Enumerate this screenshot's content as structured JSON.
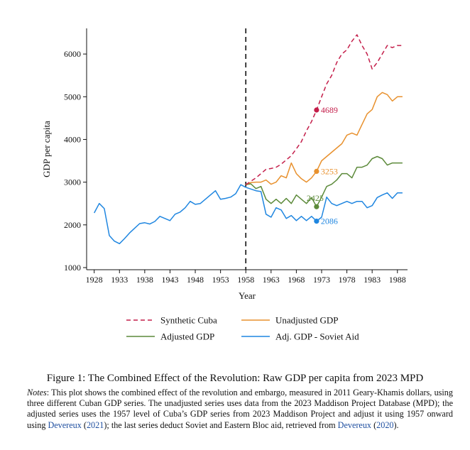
{
  "chart_data": {
    "type": "line",
    "xlabel": "Year",
    "ylabel": "GDP per capita",
    "xlim": [
      1926.5,
      1990
    ],
    "ylim": [
      950,
      6600
    ],
    "xticks": [
      1928,
      1933,
      1938,
      1943,
      1948,
      1953,
      1958,
      1963,
      1968,
      1973,
      1978,
      1983,
      1988
    ],
    "yticks": [
      1000,
      2000,
      3000,
      4000,
      5000,
      6000
    ],
    "grid": false,
    "vline": {
      "x": 1958,
      "style": "dashed"
    },
    "legend_position": "bottom",
    "series": [
      {
        "name": "Synthetic Cuba",
        "color": "#c41e4a",
        "style": "dashed",
        "x": [
          1958,
          1959,
          1960,
          1961,
          1962,
          1963,
          1964,
          1965,
          1966,
          1967,
          1968,
          1969,
          1970,
          1971,
          1972,
          1973,
          1974,
          1975,
          1976,
          1977,
          1978,
          1979,
          1980,
          1981,
          1982,
          1983,
          1984,
          1985,
          1986,
          1987,
          1988,
          1989
        ],
        "values": [
          2940,
          3020,
          3100,
          3200,
          3300,
          3320,
          3350,
          3420,
          3520,
          3620,
          3780,
          3950,
          4200,
          4420,
          4689,
          5000,
          5300,
          5500,
          5800,
          6000,
          6100,
          6300,
          6450,
          6200,
          6000,
          5650,
          5800,
          6000,
          6200,
          6150,
          6200,
          6200
        ]
      },
      {
        "name": "Unadjusted GDP",
        "color": "#e8912e",
        "style": "solid",
        "x": [
          1958,
          1959,
          1960,
          1961,
          1962,
          1963,
          1964,
          1965,
          1966,
          1967,
          1968,
          1969,
          1970,
          1971,
          1972,
          1973,
          1974,
          1975,
          1976,
          1977,
          1978,
          1979,
          1980,
          1981,
          1982,
          1983,
          1984,
          1985,
          1986,
          1987,
          1988,
          1989
        ],
        "values": [
          2940,
          2990,
          3000,
          3000,
          3050,
          2950,
          3000,
          3150,
          3100,
          3450,
          3200,
          3080,
          3000,
          3100,
          3253,
          3500,
          3600,
          3700,
          3800,
          3900,
          4100,
          4150,
          4100,
          4350,
          4600,
          4700,
          5000,
          5100,
          5050,
          4900,
          5000,
          5000
        ]
      },
      {
        "name": "Adjusted GDP",
        "color": "#5c8a3a",
        "style": "solid",
        "x": [
          1958,
          1959,
          1960,
          1961,
          1962,
          1963,
          1964,
          1965,
          1966,
          1967,
          1968,
          1969,
          1970,
          1971,
          1972,
          1973,
          1974,
          1975,
          1976,
          1977,
          1978,
          1979,
          1980,
          1981,
          1982,
          1983,
          1984,
          1985,
          1986,
          1987,
          1988,
          1989
        ],
        "values": [
          2940,
          2960,
          2850,
          2900,
          2600,
          2500,
          2600,
          2500,
          2620,
          2500,
          2700,
          2600,
          2500,
          2640,
          2425,
          2650,
          2900,
          2950,
          3050,
          3200,
          3200,
          3100,
          3350,
          3350,
          3400,
          3550,
          3600,
          3550,
          3400,
          3450,
          3450,
          3450
        ]
      },
      {
        "name": "Adj. GDP - Soviet Aid",
        "color": "#1f86e0",
        "style": "solid",
        "x": [
          1928,
          1929,
          1930,
          1931,
          1932,
          1933,
          1934,
          1935,
          1936,
          1937,
          1938,
          1939,
          1940,
          1941,
          1942,
          1943,
          1944,
          1945,
          1946,
          1947,
          1948,
          1949,
          1950,
          1951,
          1952,
          1953,
          1954,
          1955,
          1956,
          1957,
          1958,
          1959,
          1960,
          1961,
          1962,
          1963,
          1964,
          1965,
          1966,
          1967,
          1968,
          1969,
          1970,
          1971,
          1972,
          1973,
          1974,
          1975,
          1976,
          1977,
          1978,
          1979,
          1980,
          1981,
          1982,
          1983,
          1984,
          1985,
          1986,
          1987,
          1988,
          1989
        ],
        "values": [
          2280,
          2500,
          2380,
          1750,
          1620,
          1560,
          1680,
          1810,
          1920,
          2030,
          2050,
          2020,
          2080,
          2200,
          2150,
          2100,
          2250,
          2300,
          2400,
          2550,
          2480,
          2500,
          2600,
          2700,
          2800,
          2600,
          2620,
          2650,
          2730,
          2940,
          2880,
          2840,
          2800,
          2780,
          2250,
          2180,
          2400,
          2350,
          2150,
          2220,
          2100,
          2200,
          2100,
          2200,
          2086,
          2180,
          2650,
          2500,
          2450,
          2500,
          2550,
          2500,
          2550,
          2550,
          2400,
          2450,
          2640,
          2700,
          2750,
          2620,
          2750,
          2750
        ]
      }
    ],
    "annotations": [
      {
        "series": "Synthetic Cuba",
        "x": 1972,
        "y": 4689,
        "text": "4689"
      },
      {
        "series": "Unadjusted GDP",
        "x": 1972,
        "y": 3253,
        "text": "3253"
      },
      {
        "series": "Adjusted GDP",
        "x": 1972,
        "y": 2425,
        "text": "2425"
      },
      {
        "series": "Adj. GDP - Soviet Aid",
        "x": 1972,
        "y": 2086,
        "text": "2086"
      }
    ]
  },
  "caption": {
    "text": "Figure 1: The Combined Effect of the Revolution: Raw GDP per capita from 2023 MPD"
  },
  "notes": {
    "label": "Notes",
    "text_1": ": This plot shows the combined effect of the revolution and embargo, measured in 2011 Geary-Khamis dollars, using three different Cuban GDP series. The unadjusted series uses data from the 2023 Maddison Project Database (MPD); the adjusted series uses the 1957 level of Cuba’s GDP series from 2023 Maddison Project and adjust it using 1957 onward using ",
    "cite_1": "Devereux",
    "year_1": "2021",
    "text_2": "; the last series deduct Soviet and Eastern Bloc aid, retrieved from ",
    "cite_2": "Devereux",
    "year_2": "2020",
    "text_3": ")."
  }
}
